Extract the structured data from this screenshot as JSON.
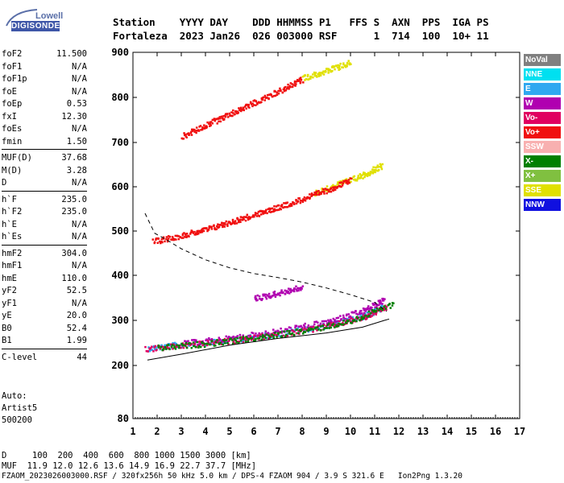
{
  "logo": {
    "top": "Lowell",
    "bottom": "DIGISONDE"
  },
  "header": {
    "line1": "Station    YYYY DAY    DDD HHMMSS P1   FFS S  AXN  PPS  IGA PS",
    "line2": "Fortaleza  2023 Jan26  026 003000 RSF      1  714  100  10+ 11"
  },
  "params": [
    {
      "k": "foF2",
      "v": "11.500"
    },
    {
      "k": "foF1",
      "v": "N/A"
    },
    {
      "k": "foF1p",
      "v": "N/A"
    },
    {
      "k": "foE",
      "v": "N/A"
    },
    {
      "k": "foEp",
      "v": "0.53"
    },
    {
      "k": "fxI",
      "v": "12.30"
    },
    {
      "k": "foEs",
      "v": "N/A"
    },
    {
      "k": "fmin",
      "v": "1.50"
    },
    {
      "k": "MUF(D)",
      "v": "37.68"
    },
    {
      "k": "M(D)",
      "v": "3.28"
    },
    {
      "k": "D",
      "v": "N/A"
    },
    {
      "k": "h`F",
      "v": "235.0"
    },
    {
      "k": "h`F2",
      "v": "235.0"
    },
    {
      "k": "h`E",
      "v": "N/A"
    },
    {
      "k": "h`Es",
      "v": "N/A"
    },
    {
      "k": "hmF2",
      "v": "304.0"
    },
    {
      "k": "hmF1",
      "v": "N/A"
    },
    {
      "k": "hmE",
      "v": "110.0"
    },
    {
      "k": "yF2",
      "v": "52.5"
    },
    {
      "k": "yF1",
      "v": "N/A"
    },
    {
      "k": "yE",
      "v": "20.0"
    },
    {
      "k": "B0",
      "v": "52.4"
    },
    {
      "k": "B1",
      "v": "1.99"
    },
    {
      "k": "C-level",
      "v": "44"
    }
  ],
  "auto": {
    "line1": "Auto:",
    "line2": "Artist5",
    "line3": "500200"
  },
  "legend": [
    {
      "label": "NoVal",
      "color": "#808080"
    },
    {
      "label": "NNE",
      "color": "#00e0f0"
    },
    {
      "label": "E",
      "color": "#30a8f0"
    },
    {
      "label": "W",
      "color": "#b000b0"
    },
    {
      "label": "Vo-",
      "color": "#e00060"
    },
    {
      "label": "Vo+",
      "color": "#f01010"
    },
    {
      "label": "SSW",
      "color": "#f8b0b0"
    },
    {
      "label": "X-",
      "color": "#008000"
    },
    {
      "label": "X+",
      "color": "#80c040"
    },
    {
      "label": "SSE",
      "color": "#e0e000"
    },
    {
      "label": "NNW",
      "color": "#1010e0"
    }
  ],
  "footer": {
    "line1": "D     100  200  400  600  800 1000 1500 3000 [km]",
    "line2": "MUF  11.9 12.0 12.6 13.6 14.9 16.9 22.7 37.7 [MHz]",
    "line3": "FZAOM_2023026003000.RSF / 320fx256h 50 kHz 5.0 km / DPS-4 FZAOM 904 / 3.9 S 321.6 E   Ion2Png 1.3.20"
  },
  "chart_data": {
    "type": "scatter",
    "xlim": [
      1,
      17
    ],
    "ylim": [
      80,
      900
    ],
    "xticks": [
      1,
      2,
      3,
      4,
      5,
      6,
      7,
      8,
      9,
      10,
      11,
      12,
      13,
      14,
      15,
      16,
      17
    ],
    "yticks": [
      80,
      200,
      300,
      400,
      500,
      600,
      700,
      800,
      900
    ],
    "series": [
      {
        "name": "E",
        "color": "#30a8f0",
        "traces": [
          {
            "x": [
              1.6,
              3,
              5,
              7,
              9,
              10.5,
              11.3
            ],
            "y": [
              240,
              248,
              258,
              272,
              290,
              310,
              330
            ]
          }
        ]
      },
      {
        "name": "W",
        "color": "#b000b0",
        "traces": [
          {
            "x": [
              3,
              5,
              7,
              9,
              10.5,
              11.4
            ],
            "y": [
              250,
              262,
              278,
              298,
              322,
              348
            ]
          },
          {
            "x": [
              6,
              7,
              8
            ],
            "y": [
              350,
              362,
              375
            ]
          }
        ]
      },
      {
        "name": "Vo-",
        "color": "#e00060",
        "traces": [
          {
            "x": [
              1.5,
              3,
              5,
              7,
              9,
              10.5,
              11.5
            ],
            "y": [
              238,
              246,
              256,
              270,
              288,
              308,
              332
            ]
          }
        ]
      },
      {
        "name": "X-",
        "color": "#008000",
        "traces": [
          {
            "x": [
              2,
              4,
              6,
              8,
              10,
              11.8
            ],
            "y": [
              240,
              250,
              262,
              278,
              300,
              340
            ]
          }
        ]
      },
      {
        "name": "SSE",
        "color": "#e0e000",
        "traces": [
          {
            "x": [
              8.5,
              9.5,
              10.5,
              11.3
            ],
            "y": [
              588,
              608,
              628,
              650
            ]
          },
          {
            "x": [
              8,
              9,
              10
            ],
            "y": [
              845,
              860,
              880
            ]
          }
        ]
      },
      {
        "name": "Vo+",
        "color": "#f01010",
        "traces": [
          {
            "x": [
              1.8,
              3,
              4,
              5,
              6,
              7,
              8,
              9,
              10
            ],
            "y": [
              478,
              492,
              505,
              522,
              538,
              556,
              574,
              594,
              616
            ]
          },
          {
            "x": [
              3,
              4,
              5,
              6,
              7,
              8
            ],
            "y": [
              715,
              740,
              765,
              790,
              815,
              842
            ]
          }
        ]
      }
    ],
    "curves": [
      {
        "style": "solid",
        "x": [
          1.6,
          3,
          5,
          7,
          9,
          10.5,
          11.4,
          11.6
        ],
        "y": [
          212,
          225,
          245,
          260,
          272,
          285,
          300,
          303
        ]
      },
      {
        "style": "dashed",
        "x": [
          1.5,
          1.9,
          2.4,
          3,
          4,
          5,
          6,
          7,
          8,
          9,
          10,
          11,
          11.5
        ],
        "y": [
          540,
          495,
          480,
          460,
          435,
          417,
          404,
          395,
          385,
          372,
          357,
          340,
          320
        ]
      }
    ]
  }
}
